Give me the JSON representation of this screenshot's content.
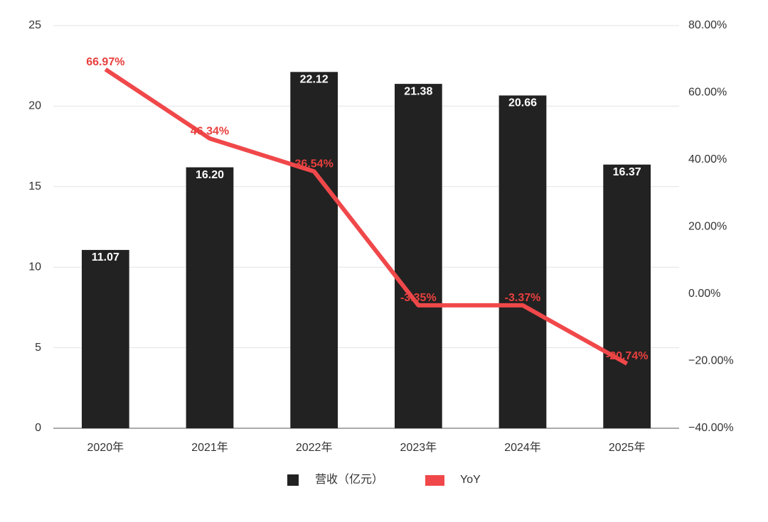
{
  "chart_data": {
    "type": "bar",
    "categories": [
      "2020年",
      "2021年",
      "2022年",
      "2023年",
      "2024年",
      "2025年"
    ],
    "series": [
      {
        "name": "营收（亿元）",
        "type": "bar",
        "axis": "left",
        "values": [
          11.07,
          16.2,
          22.12,
          21.38,
          20.66,
          16.37
        ],
        "labels": [
          "11.07",
          "16.20",
          "22.12",
          "21.38",
          "20.66",
          "16.37"
        ],
        "color": "#222222"
      },
      {
        "name": "YoY",
        "type": "line",
        "axis": "right",
        "values": [
          66.97,
          46.34,
          36.54,
          -3.35,
          -3.37,
          -20.74
        ],
        "labels": [
          "66.97%",
          "46.34%",
          "36.54%",
          "-3.35%",
          "-3.37%",
          "-20.74%"
        ],
        "color": "#f0484a",
        "label_color": "#e8403e"
      }
    ],
    "ylim": [
      0,
      25
    ],
    "yticks": [
      "0",
      "5",
      "10",
      "15",
      "20",
      "25"
    ],
    "y2lim": [
      -40,
      80
    ],
    "y2ticks": [
      "−40.00%",
      "−20.00%",
      "0.00%",
      "20.00%",
      "40.00%",
      "60.00%",
      "80.00%"
    ],
    "grid": true,
    "legend_position": "bottom"
  }
}
